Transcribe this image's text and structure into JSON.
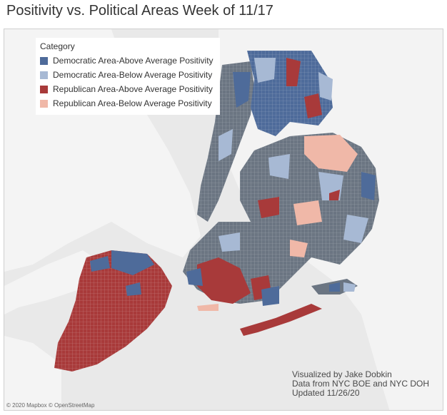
{
  "title": "Positivity vs. Political Areas Week of 11/17",
  "legend": {
    "title": "Category",
    "items": [
      {
        "label": "Democratic Area-Above Average Positivity",
        "color": "#4e6b9a"
      },
      {
        "label": "Democratic Area-Below Average Positivity",
        "color": "#a7b9d4"
      },
      {
        "label": "Republican Area-Above Average Positivity",
        "color": "#a83a3a"
      },
      {
        "label": "Republican Area-Below Average Positivity",
        "color": "#f0b8a8"
      }
    ]
  },
  "credits": {
    "line1": "Visualized by Jake Dobkin",
    "line2": "Data from NYC BOE and NYC DOH",
    "line3": "Updated 11/26/20"
  },
  "attribution": "© 2020 Mapbox © OpenStreetMap",
  "colors": {
    "water": "#e9e9e9",
    "land": "#f6f6f6",
    "dem_above": "#4e6b9a",
    "dem_below": "#a7b9d4",
    "rep_above": "#a83a3a",
    "rep_below": "#f0b8a8",
    "base_grey": "#6b7582"
  }
}
